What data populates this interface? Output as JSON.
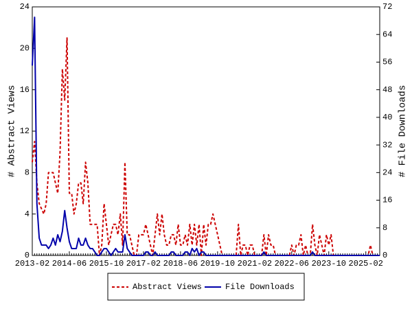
{
  "chart_data": {
    "type": "line",
    "categories": [
      "2013-02",
      null,
      null,
      null,
      null,
      null,
      null,
      null,
      null,
      null,
      null,
      null,
      null,
      null,
      null,
      null,
      "2014-06",
      null,
      null,
      null,
      null,
      null,
      null,
      null,
      null,
      null,
      null,
      null,
      null,
      null,
      null,
      null,
      "2015-10",
      null,
      null,
      null,
      null,
      null,
      null,
      null,
      null,
      null,
      null,
      null,
      null,
      null,
      null,
      null,
      "2017-02",
      null,
      null,
      null,
      null,
      null,
      null,
      null,
      null,
      null,
      null,
      null,
      null,
      null,
      null,
      null,
      "2018-06",
      null,
      null,
      null,
      null,
      null,
      null,
      null,
      null,
      null,
      null,
      null,
      null,
      null,
      null,
      null,
      "2019-10",
      null,
      null,
      null,
      null,
      null,
      null,
      null,
      null,
      null,
      null,
      null,
      null,
      null,
      null,
      null,
      "2021-02",
      null,
      null,
      null,
      null,
      null,
      null,
      null,
      null,
      null,
      null,
      null,
      null,
      null,
      null,
      null,
      "2022-06",
      null,
      null,
      null,
      null,
      null,
      null,
      null,
      null,
      null,
      null,
      null,
      null,
      null,
      null,
      null,
      "2023-10",
      null,
      null,
      null,
      null,
      null,
      null,
      null,
      null,
      null,
      null,
      null,
      null,
      null,
      null,
      null,
      "2025-02",
      null,
      null,
      null,
      null,
      null,
      null
    ],
    "ylabel": "# Abstract Views",
    "y2label": "# File Downloads",
    "ylim": [
      0,
      24
    ],
    "yticks": [
      0,
      4,
      8,
      12,
      16,
      20,
      24
    ],
    "y2lim": [
      0,
      72
    ],
    "y2ticks": [
      0,
      8,
      16,
      24,
      32,
      40,
      48,
      56,
      64,
      72
    ],
    "series": [
      {
        "name": "Abstract Views",
        "color": "#cc0000",
        "dash": true,
        "values": [
          9,
          11,
          7,
          5,
          4.5,
          4,
          5,
          8,
          8,
          8,
          7,
          6,
          10,
          18,
          15,
          21,
          6,
          6,
          4,
          5,
          7,
          7,
          5,
          9,
          7,
          3,
          3,
          3,
          3,
          0,
          1,
          5,
          3,
          1,
          2,
          3,
          3,
          2,
          4,
          1,
          9,
          2,
          2,
          1,
          0,
          0,
          2,
          2,
          2,
          3,
          2,
          1,
          0,
          2,
          4,
          2,
          4,
          2,
          1,
          1,
          2,
          2,
          1,
          3,
          1,
          1,
          2,
          1,
          3,
          1,
          3,
          1,
          3,
          0,
          3,
          1,
          3,
          3,
          4,
          3,
          2,
          1,
          0,
          0,
          0,
          0,
          0,
          0,
          0,
          3,
          0,
          1,
          1,
          0,
          1,
          1,
          0,
          0,
          0,
          0,
          2,
          0,
          2,
          1,
          1,
          0,
          0,
          0,
          0,
          0,
          0,
          0,
          1,
          0,
          1,
          1,
          2,
          0,
          1,
          0,
          0,
          3,
          1,
          0,
          2,
          1,
          0,
          2,
          1,
          2,
          0,
          0,
          0,
          0,
          0,
          0,
          0,
          0,
          0,
          0,
          0,
          0,
          0,
          0,
          0,
          0,
          1,
          0,
          0,
          0,
          0
        ]
      },
      {
        "name": "File Downloads",
        "color": "#0000aa",
        "axis": "y2",
        "values": [
          55,
          69,
          15,
          5,
          3,
          3,
          3,
          2,
          3,
          5,
          3,
          6,
          4,
          7,
          13,
          8,
          4,
          2,
          2,
          2,
          5,
          3,
          3,
          5,
          3,
          2,
          2,
          1,
          0,
          0,
          1,
          2,
          2,
          1,
          0,
          1,
          2,
          1,
          1,
          1,
          6,
          2,
          1,
          0,
          0,
          0,
          0,
          0,
          0,
          1,
          1,
          0,
          0,
          1,
          0,
          0,
          0,
          0,
          0,
          0,
          1,
          1,
          0,
          0,
          0,
          0,
          1,
          1,
          0,
          2,
          1,
          2,
          0,
          1,
          1,
          0,
          0,
          0,
          0,
          0,
          0,
          0,
          0,
          0,
          0,
          0,
          0,
          0,
          0,
          0,
          0,
          0,
          0,
          0,
          0,
          0,
          0,
          0,
          0,
          0,
          1,
          0,
          0,
          0,
          0,
          0,
          0,
          0,
          0,
          0,
          0,
          0,
          0,
          0,
          0,
          0,
          0,
          0,
          0,
          0,
          0,
          1,
          0,
          0,
          0,
          0,
          0,
          0,
          0,
          0,
          0,
          0,
          0,
          0,
          0,
          0,
          0,
          0,
          0,
          0,
          0,
          0,
          0,
          0,
          0,
          0,
          0,
          0,
          0,
          0,
          0
        ]
      }
    ]
  }
}
